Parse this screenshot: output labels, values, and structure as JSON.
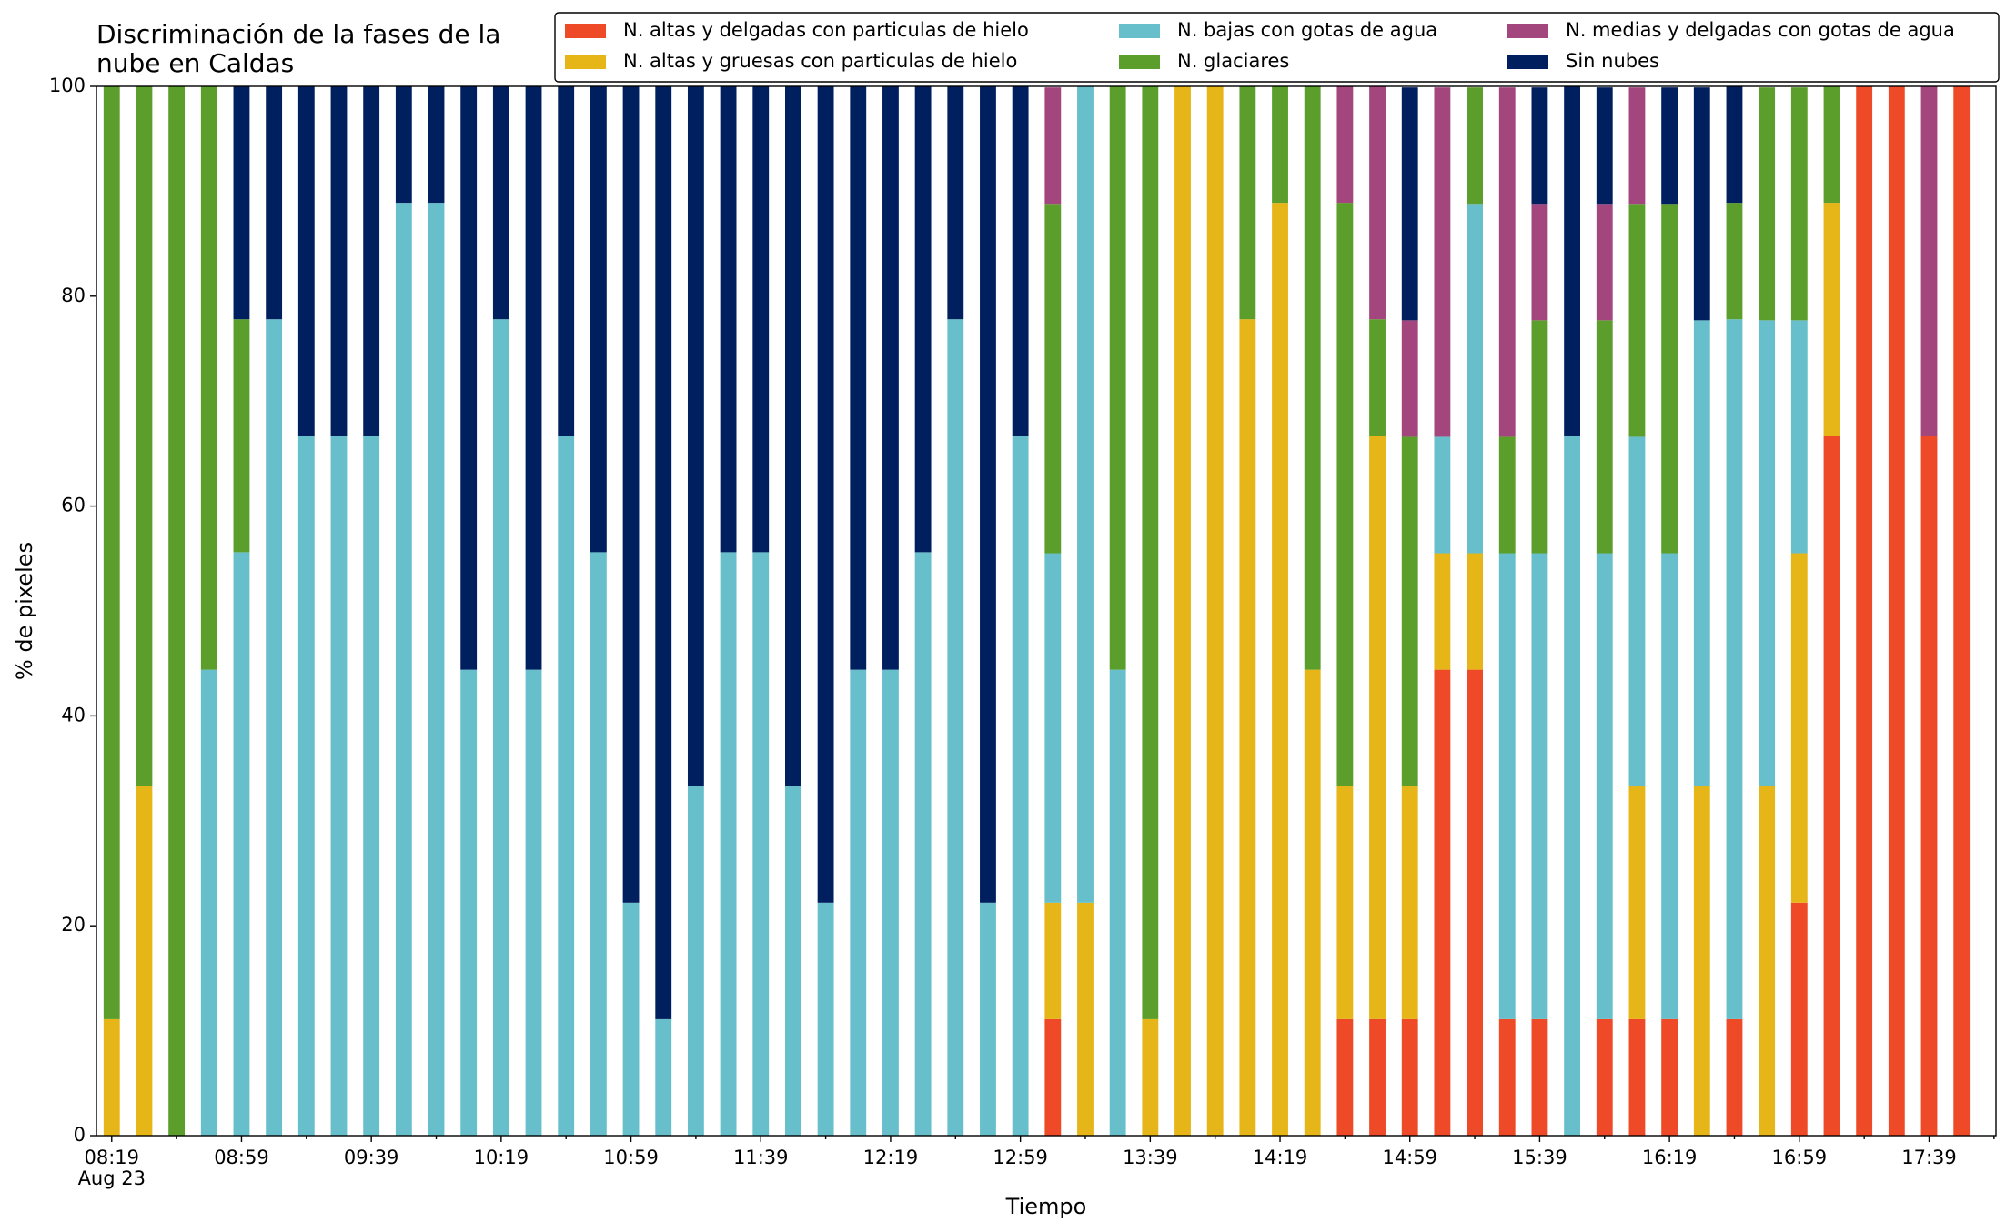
{
  "chart_data": {
    "type": "stacked_bar",
    "title": "Discriminación de la fases de la\nnube en Caldas",
    "x_label": "Tiempo",
    "y_label": "% de pixeles",
    "x_date": "Aug 23",
    "categories": [
      "08:19",
      null,
      null,
      null,
      "08:59",
      null,
      null,
      null,
      "09:39",
      null,
      null,
      null,
      "10:19",
      null,
      null,
      null,
      "10:59",
      null,
      null,
      null,
      "11:39",
      null,
      null,
      null,
      "12:19",
      null,
      null,
      null,
      "12:59",
      null,
      null,
      null,
      "13:39",
      null,
      null,
      null,
      "14:19",
      null,
      null,
      null,
      "14:59",
      null,
      null,
      null,
      "15:39",
      null,
      null,
      null,
      "16:19",
      null,
      null,
      null,
      "16:59",
      null,
      null,
      null,
      "17:39",
      null
    ],
    "ylim": [
      0,
      100
    ],
    "yticks": [
      0,
      20,
      40,
      60,
      80,
      100
    ],
    "legend": "top right",
    "series": [
      {
        "name": "N. altas y delgadas con particulas de hielo",
        "color": "#ef4a28",
        "values": [
          0,
          0,
          0,
          0,
          0,
          0,
          0,
          0,
          0,
          0,
          0,
          0,
          0,
          0,
          0,
          0,
          0,
          0,
          0,
          0,
          0,
          0,
          0,
          0,
          0,
          0,
          0,
          0,
          0,
          11.1,
          0,
          0,
          0,
          0,
          0,
          0,
          0,
          0,
          11.1,
          11.1,
          11.1,
          44.4,
          44.4,
          11.1,
          11.1,
          0,
          11.1,
          11.1,
          11.1,
          0,
          11.1,
          0,
          22.2,
          66.7,
          100,
          100,
          66.7,
          100
        ]
      },
      {
        "name": "N. altas y gruesas con particulas de hielo",
        "color": "#e6b517",
        "values": [
          11.1,
          33.3,
          0,
          0,
          0,
          0,
          0,
          0,
          0,
          0,
          0,
          0,
          0,
          0,
          0,
          0,
          0,
          0,
          0,
          0,
          0,
          0,
          0,
          0,
          0,
          0,
          0,
          0,
          0,
          11.1,
          22.2,
          0,
          11.1,
          100,
          100,
          77.8,
          88.9,
          44.4,
          22.2,
          55.6,
          22.2,
          11.1,
          11.1,
          0,
          0,
          0,
          0,
          22.2,
          0,
          33.3,
          0,
          33.3,
          33.3,
          22.2,
          0,
          0,
          0,
          0
        ]
      },
      {
        "name": "N. bajas con gotas de agua",
        "color": "#66bfca",
        "values": [
          0,
          0,
          0,
          44.4,
          55.6,
          77.8,
          66.7,
          66.7,
          66.7,
          88.9,
          88.9,
          44.4,
          77.8,
          44.4,
          66.7,
          55.6,
          22.2,
          11.1,
          33.3,
          55.6,
          55.6,
          33.3,
          22.2,
          44.4,
          44.4,
          55.6,
          77.8,
          22.2,
          66.7,
          33.3,
          77.8,
          44.4,
          0,
          0,
          0,
          0,
          0,
          0,
          0,
          0,
          0,
          11.1,
          33.3,
          44.4,
          44.4,
          66.7,
          44.4,
          33.3,
          44.4,
          44.4,
          66.7,
          44.4,
          22.2,
          0,
          0,
          0,
          0,
          0
        ]
      },
      {
        "name": "N. glaciares",
        "color": "#5b9e2b",
        "values": [
          88.9,
          66.7,
          100,
          55.6,
          22.2,
          0,
          0,
          0,
          0,
          0,
          0,
          0,
          0,
          0,
          0,
          0,
          0,
          0,
          0,
          0,
          0,
          0,
          0,
          0,
          0,
          0,
          0,
          0,
          0,
          33.3,
          0,
          55.6,
          88.9,
          0,
          0,
          22.2,
          11.1,
          55.6,
          55.6,
          11.1,
          33.3,
          0,
          11.1,
          11.1,
          22.2,
          0,
          22.2,
          22.2,
          33.3,
          0,
          11.1,
          22.2,
          22.2,
          11.1,
          0,
          0,
          0,
          0
        ]
      },
      {
        "name": "N. medias y delgadas con gotas de agua",
        "color": "#a3467d",
        "values": [
          0,
          0,
          0,
          0,
          0,
          0,
          0,
          0,
          0,
          0,
          0,
          0,
          0,
          0,
          0,
          0,
          0,
          0,
          0,
          0,
          0,
          0,
          0,
          0,
          0,
          0,
          0,
          0,
          0,
          11.1,
          0,
          0,
          0,
          0,
          0,
          0,
          0,
          0,
          11.1,
          22.2,
          11.1,
          33.3,
          0,
          33.3,
          11.1,
          0,
          11.1,
          11.1,
          0,
          0,
          0,
          0,
          0,
          0,
          0,
          0,
          33.3,
          0
        ]
      },
      {
        "name": "Sin nubes",
        "color": "#001f5f",
        "values": [
          0,
          0,
          0,
          0,
          22.2,
          22.2,
          33.3,
          33.3,
          33.3,
          11.1,
          11.1,
          55.6,
          22.2,
          55.6,
          33.3,
          44.4,
          77.8,
          88.9,
          66.7,
          44.4,
          44.4,
          66.7,
          77.8,
          55.6,
          55.6,
          44.4,
          22.2,
          77.8,
          33.3,
          0,
          0,
          0,
          0,
          0,
          0,
          0,
          0,
          0,
          0,
          0,
          22.2,
          0,
          0,
          0,
          11.1,
          33.3,
          11.1,
          0,
          11.1,
          22.2,
          11.1,
          0,
          0,
          0,
          0,
          0,
          0,
          0
        ]
      }
    ]
  }
}
